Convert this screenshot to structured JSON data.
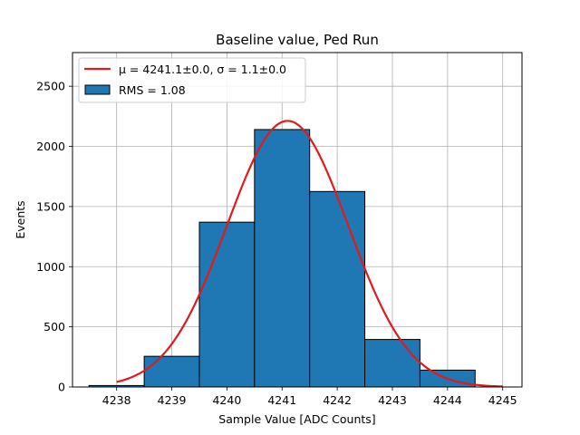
{
  "chart_data": {
    "type": "bar",
    "title": "Baseline value, Ped Run",
    "xlabel": "Sample Value [ADC Counts]",
    "ylabel": "Events",
    "xlim": [
      4237.2,
      4245.35
    ],
    "ylim": [
      0,
      2780
    ],
    "grid": true,
    "legend_placement": "top-left",
    "x_ticks": [
      4238,
      4239,
      4240,
      4241,
      4242,
      4243,
      4244,
      4245
    ],
    "y_ticks": [
      0,
      500,
      1000,
      1500,
      2000,
      2500
    ],
    "histogram": {
      "name": "RMS = 1.08",
      "color": "#1f77b4",
      "edgecolor": "#000000",
      "bin_edges": [
        4237.5,
        4238.5,
        4239.5,
        4240.5,
        4241.5,
        4242.5,
        4243.5,
        4244.5
      ],
      "counts": [
        12,
        255,
        1370,
        2140,
        1625,
        395,
        140
      ]
    },
    "fit": {
      "name": "$\\mu = 4241.1 \\pm 0.0$, $\\sigma = 1.1 \\pm 0.0$",
      "legend_label": "μ = 4241.1±0.0, σ = 1.1±0.0",
      "color": "#e31a1c",
      "type": "gaussian",
      "mu": 4241.1,
      "sigma": 1.1,
      "amplitude": 2212,
      "x_range": [
        4238,
        4245
      ]
    },
    "legend": [
      {
        "kind": "line",
        "label": "μ = 4241.1±0.0, σ = 1.1±0.0"
      },
      {
        "kind": "patch",
        "label": "RMS = 1.08"
      }
    ]
  }
}
